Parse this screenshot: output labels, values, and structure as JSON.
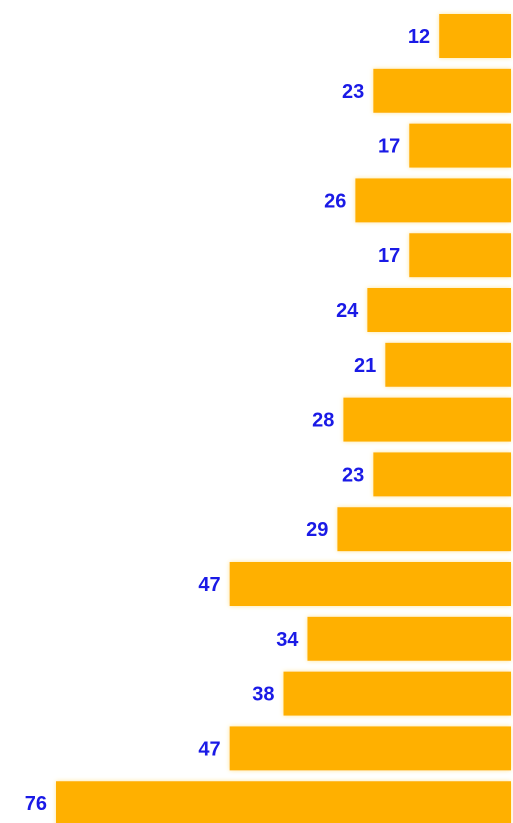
{
  "chart_data": {
    "type": "bar",
    "orientation": "horizontal",
    "bar_anchor": "right",
    "values": [
      12,
      23,
      17,
      26,
      17,
      24,
      21,
      28,
      23,
      29,
      47,
      34,
      38,
      47,
      76
    ],
    "labels": [
      "12",
      "23",
      "17",
      "26",
      "17",
      "24",
      "21",
      "28",
      "23",
      "29",
      "47",
      "34",
      "38",
      "47",
      "76"
    ],
    "title": "",
    "xlabel": "",
    "ylabel": "",
    "xlim": [
      0,
      76
    ],
    "grid": false,
    "legend": "none"
  },
  "colors": {
    "bar": "#FFB000",
    "bar_glow": "#FFE79A",
    "label": "#1A1AE6",
    "background": "#FFFFFF"
  }
}
